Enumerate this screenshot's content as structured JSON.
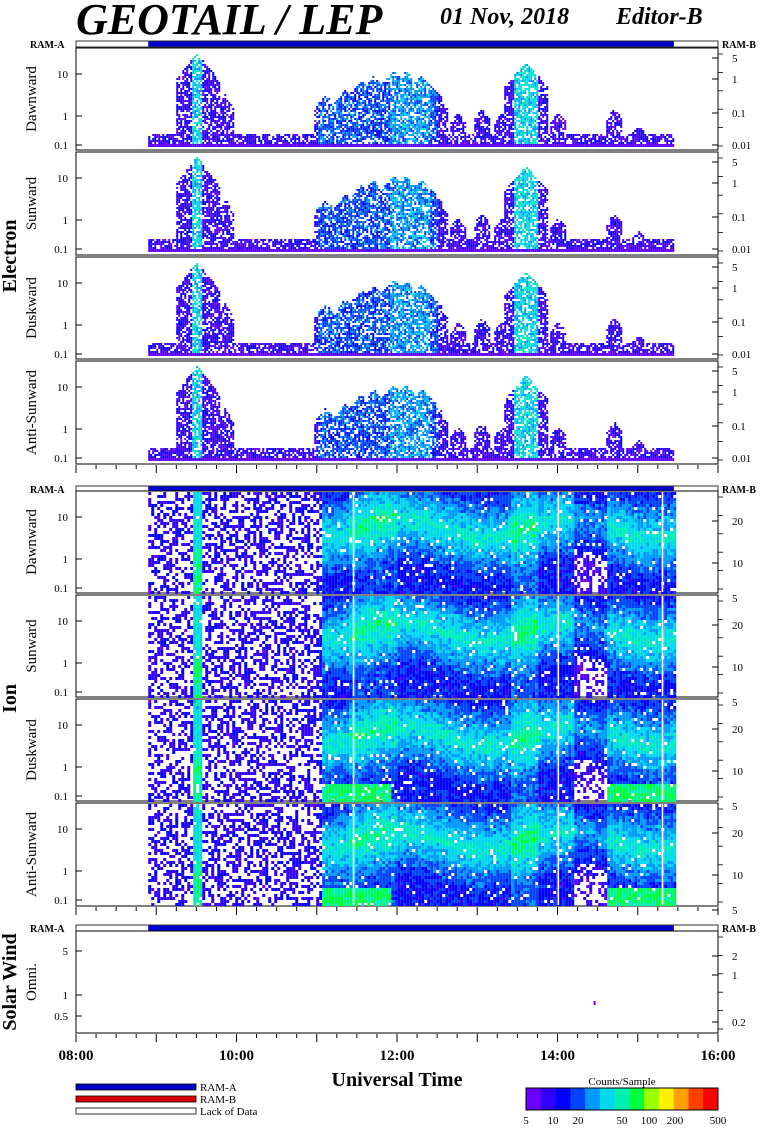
{
  "header": {
    "title": "GEOTAIL / LEP",
    "date": "01 Nov, 2018",
    "editor": "Editor-B"
  },
  "colors": {
    "ram_a": "#0000cc",
    "ram_b": "#dd0000",
    "scale": [
      "#6a00ff",
      "#3300ff",
      "#0000ff",
      "#0044ff",
      "#0099ff",
      "#00d8f0",
      "#00f0b0",
      "#00ff40",
      "#9cff00",
      "#fff000",
      "#ffa000",
      "#ff4000",
      "#ff0000"
    ]
  },
  "chart_data": {
    "type": "heatmap",
    "xlabel": "Universal Time",
    "x_ticks": [
      "08:00",
      "10:00",
      "12:00",
      "14:00",
      "16:00"
    ],
    "xlim": [
      8,
      16
    ],
    "data_coverage": [
      8.9,
      15.45
    ],
    "groups": [
      {
        "name": "Electron",
        "ram_left": "RAM-A",
        "ram_right": "RAM-B",
        "panels": [
          {
            "label": "Dawnward",
            "y_ticks": [
              "10",
              "1",
              "0.1"
            ],
            "right_ticks": [
              "5",
              "1",
              "0.1",
              "0.01"
            ]
          },
          {
            "label": "Sunward",
            "y_ticks": [
              "10",
              "1",
              "0.1"
            ],
            "right_ticks": [
              "5",
              "1",
              "0.1",
              "0.01"
            ]
          },
          {
            "label": "Duskward",
            "y_ticks": [
              "10",
              "1",
              "0.1"
            ],
            "right_ticks": [
              "5",
              "1",
              "0.1",
              "0.01"
            ]
          },
          {
            "label": "Anti-Sunward",
            "y_ticks": [
              "10",
              "1",
              "0.1"
            ],
            "right_ticks": [
              "5",
              "1",
              "0.1",
              "0.01"
            ]
          }
        ]
      },
      {
        "name": "Ion",
        "ram_left": "RAM-A",
        "ram_right": "RAM-B",
        "panels": [
          {
            "label": "Dawnward",
            "y_ticks": [
              "10",
              "1",
              "0.1"
            ],
            "right_ticks": [
              "20",
              "10",
              "5"
            ]
          },
          {
            "label": "Sunward",
            "y_ticks": [
              "10",
              "1",
              "0.1"
            ],
            "right_ticks": [
              "20",
              "10",
              "5"
            ]
          },
          {
            "label": "Duskward",
            "y_ticks": [
              "10",
              "1",
              "0.1"
            ],
            "right_ticks": [
              "20",
              "10",
              "5"
            ]
          },
          {
            "label": "Anti-Sunward",
            "y_ticks": [
              "10",
              "1",
              "0.1"
            ],
            "right_ticks": [
              "20",
              "10",
              "5"
            ]
          }
        ]
      },
      {
        "name": "Solar Wind",
        "ram_left": "RAM-A",
        "ram_right": "RAM-B",
        "panels": [
          {
            "label": "Omni.",
            "y_ticks": [
              "5",
              "1",
              "0.5"
            ],
            "right_ticks": [
              "2",
              "1",
              "0.2"
            ]
          }
        ]
      }
    ],
    "legend": [
      {
        "label": "RAM-A"
      },
      {
        "label": "RAM-B"
      },
      {
        "label": "Lack of Data"
      }
    ],
    "colorbar": {
      "title": "Counts/Sample",
      "ticks": [
        "5",
        "10",
        "20",
        "50",
        "100",
        "200",
        "500"
      ]
    }
  }
}
